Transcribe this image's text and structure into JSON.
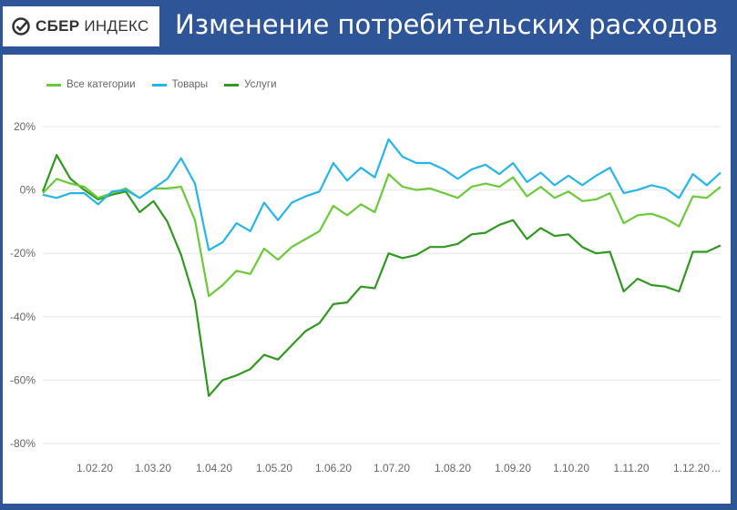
{
  "header": {
    "brand_bold": "СБЕР",
    "brand_light": "ИНДЕКС",
    "title": "Изменение потребительских расходов"
  },
  "colors": {
    "all": "#6cc93a",
    "goods": "#26b5ea",
    "services": "#2f9a1f",
    "grid": "#e6e6e6",
    "axis_text": "#666666"
  },
  "chart_data": {
    "type": "line",
    "title": "",
    "xlabel": "",
    "ylabel": "",
    "ylim": [
      -80,
      20
    ],
    "yticks": [
      "20%",
      "0%",
      "-20%",
      "-40%",
      "-60%",
      "-80%"
    ],
    "ytick_values": [
      20,
      0,
      -20,
      -40,
      -60,
      -80
    ],
    "xticks": [
      "1.02.20",
      "1.03.20",
      "1.04.20",
      "1.05.20",
      "1.06.20",
      "1.07.20",
      "1.08.20",
      "1.09.20",
      "1.10.20",
      "1.11.20",
      "1.12.20",
      "..."
    ],
    "grid": true,
    "legend_position": "top-left",
    "series": [
      {
        "name": "Все категории",
        "values": [
          -1,
          3.5,
          2,
          1,
          -2.5,
          -1,
          0.5,
          -2.5,
          0.5,
          0.5,
          1,
          -9.5,
          -33.5,
          -30,
          -25.5,
          -26.5,
          -18.5,
          -22,
          -18,
          -15.5,
          -13,
          -5,
          -8,
          -4.5,
          -7,
          5,
          1,
          0,
          0.5,
          -1,
          -2.5,
          1,
          2,
          1,
          4,
          -2,
          1,
          -2.5,
          -0.5,
          -3.5,
          -3,
          -1,
          -10.5,
          -8,
          -7.5,
          -9,
          -11.5,
          -2,
          -2.5,
          1
        ]
      },
      {
        "name": "Товары",
        "values": [
          -1.5,
          -2.5,
          -1,
          -1,
          -4.5,
          -0.5,
          0,
          -2.5,
          0.5,
          3.5,
          10,
          2,
          -19,
          -16.5,
          -10.5,
          -13,
          -4,
          -9.5,
          -4,
          -2,
          -0.5,
          8.5,
          3,
          7,
          4,
          16,
          10.5,
          8.5,
          8.5,
          6.5,
          3.5,
          6.5,
          8,
          5,
          8.5,
          2.5,
          5.5,
          1.5,
          4.5,
          1.5,
          4.5,
          7,
          -1,
          0,
          1.5,
          0.5,
          -2.5,
          5,
          1.5,
          5.5
        ]
      },
      {
        "name": "Услуги",
        "values": [
          -0.5,
          11,
          3.5,
          0,
          -3,
          -1.5,
          -0.5,
          -7,
          -3.5,
          -10,
          -20.5,
          -35,
          -65,
          -60,
          -58.5,
          -56.5,
          -52,
          -53.5,
          -49,
          -44.5,
          -42,
          -36,
          -35.5,
          -30.5,
          -31,
          -20,
          -21.5,
          -20.5,
          -18,
          -18,
          -17,
          -14,
          -13.5,
          -11,
          -9.5,
          -15.5,
          -12,
          -14.5,
          -14,
          -18,
          -20,
          -19.5,
          -32,
          -28,
          -30,
          -30.5,
          -32,
          -19.5,
          -19.5,
          -17.5
        ]
      }
    ]
  }
}
